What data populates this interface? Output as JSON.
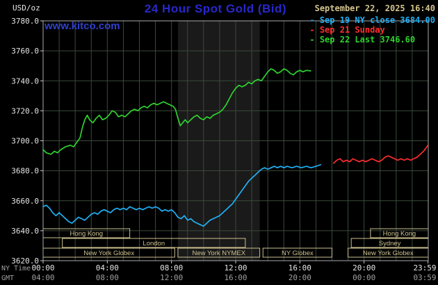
{
  "header": {
    "units": "USD/oz",
    "title": "24 Hour Spot Gold (Bid)",
    "datetime": "September 22, 2025 16:40",
    "watermark": "www.kitco.com"
  },
  "legend": {
    "items": [
      {
        "label": "Sep 19 NY close 3684.00",
        "color": "#22b0f5"
      },
      {
        "label": "Sep 21 Sunday",
        "color": "#ff2e2e"
      },
      {
        "label": "Sep 22 Last 3746.60",
        "color": "#2fd22f"
      }
    ]
  },
  "colors": {
    "background": "#000000",
    "title": "#2828cc",
    "link": "#3040cc",
    "datetime": "#d2c48e",
    "session": "#cdc08f",
    "grid": "#3a4a3a",
    "axis": "#aaaaaa",
    "tick": "#cccccc",
    "tick_label": "#e6e6e6",
    "gmt_label": "#9f9f9f",
    "band": "#1a1a1a"
  },
  "chart_data": {
    "type": "line",
    "title": "24 Hour Spot Gold (Bid)",
    "ylabel": "USD/oz",
    "xlabel": "NY Time / GMT",
    "grid": true,
    "legend_position": "top-right",
    "ylim": [
      3620,
      3780
    ],
    "xlim_hours": [
      0,
      24
    ],
    "nymex_band_hours": [
      8.4,
      13.5
    ],
    "axis_row_labels": {
      "ny": "NY Time",
      "gmt": "GMT"
    },
    "y_ticks": [
      {
        "value": 3780,
        "label": "3780.0"
      },
      {
        "value": 3760,
        "label": "3760.0"
      },
      {
        "value": 3740,
        "label": "3740.0"
      },
      {
        "value": 3720,
        "label": "3720.0"
      },
      {
        "value": 3700,
        "label": "3700.0"
      },
      {
        "value": 3680,
        "label": "3680.0"
      },
      {
        "value": 3660,
        "label": "3660.0"
      },
      {
        "value": 3640,
        "label": "3640.0"
      },
      {
        "value": 3620,
        "label": "3620.0"
      }
    ],
    "x_ticks": [
      {
        "hour": 0,
        "ny": "00:00",
        "gmt": "04:00"
      },
      {
        "hour": 4,
        "ny": "04:00",
        "gmt": "08:00"
      },
      {
        "hour": 8,
        "ny": "08:00",
        "gmt": "12:00"
      },
      {
        "hour": 12,
        "ny": "12:00",
        "gmt": "16:00"
      },
      {
        "hour": 16,
        "ny": "16:00",
        "gmt": "20:00"
      },
      {
        "hour": 20,
        "ny": "20:00",
        "gmt": "00:00"
      },
      {
        "hour": 23.983,
        "ny": "23:59",
        "gmt": "03:59"
      }
    ],
    "sessions": [
      {
        "row": 1,
        "start": 0,
        "end": 5.4,
        "label": "Hong Kong"
      },
      {
        "row": 1,
        "start": 20.4,
        "end": 24,
        "label": "Hong Kong"
      },
      {
        "row": 2,
        "start": 1.2,
        "end": 12.6,
        "label": "London"
      },
      {
        "row": 2,
        "start": 19.2,
        "end": 24,
        "label": "Sydney"
      },
      {
        "row": 3,
        "start": 0,
        "end": 8.2,
        "label": "New York Globex"
      },
      {
        "row": 3,
        "start": 8.4,
        "end": 13.5,
        "label": "New York NYMEX"
      },
      {
        "row": 3,
        "start": 13.7,
        "end": 18.0,
        "label": "NY Globex"
      },
      {
        "row": 3,
        "start": 19.0,
        "end": 24,
        "label": "New York Globex"
      }
    ],
    "series": [
      {
        "name": "sep-22-last",
        "label": "Sep 22 Last 3746.60",
        "color": "#2fd22f",
        "last_value": 3746.6,
        "points": [
          [
            0.0,
            3694
          ],
          [
            0.2,
            3692
          ],
          [
            0.5,
            3691
          ],
          [
            0.7,
            3693
          ],
          [
            0.9,
            3692
          ],
          [
            1.1,
            3694
          ],
          [
            1.4,
            3696
          ],
          [
            1.7,
            3697
          ],
          [
            1.9,
            3696
          ],
          [
            2.1,
            3699
          ],
          [
            2.3,
            3702
          ],
          [
            2.45,
            3709
          ],
          [
            2.6,
            3714
          ],
          [
            2.75,
            3717
          ],
          [
            2.9,
            3714
          ],
          [
            3.1,
            3712
          ],
          [
            3.3,
            3715
          ],
          [
            3.5,
            3717
          ],
          [
            3.7,
            3714
          ],
          [
            3.9,
            3715
          ],
          [
            4.1,
            3717
          ],
          [
            4.3,
            3720
          ],
          [
            4.5,
            3719
          ],
          [
            4.7,
            3716
          ],
          [
            4.9,
            3717
          ],
          [
            5.1,
            3716
          ],
          [
            5.3,
            3718
          ],
          [
            5.5,
            3720
          ],
          [
            5.7,
            3721
          ],
          [
            5.9,
            3720
          ],
          [
            6.1,
            3722
          ],
          [
            6.3,
            3723
          ],
          [
            6.5,
            3722
          ],
          [
            6.7,
            3724
          ],
          [
            6.9,
            3725
          ],
          [
            7.1,
            3724
          ],
          [
            7.3,
            3725
          ],
          [
            7.5,
            3726
          ],
          [
            7.7,
            3725
          ],
          [
            7.9,
            3724
          ],
          [
            8.1,
            3723
          ],
          [
            8.25,
            3721
          ],
          [
            8.4,
            3715
          ],
          [
            8.55,
            3710
          ],
          [
            8.7,
            3712
          ],
          [
            8.85,
            3714
          ],
          [
            9.0,
            3712
          ],
          [
            9.2,
            3714
          ],
          [
            9.4,
            3716
          ],
          [
            9.6,
            3717
          ],
          [
            9.8,
            3715
          ],
          [
            10.0,
            3714
          ],
          [
            10.2,
            3716
          ],
          [
            10.4,
            3715
          ],
          [
            10.6,
            3717
          ],
          [
            10.8,
            3718
          ],
          [
            11.0,
            3719
          ],
          [
            11.2,
            3721
          ],
          [
            11.4,
            3724
          ],
          [
            11.6,
            3728
          ],
          [
            11.8,
            3732
          ],
          [
            12.0,
            3735
          ],
          [
            12.2,
            3737
          ],
          [
            12.4,
            3736
          ],
          [
            12.6,
            3737
          ],
          [
            12.8,
            3739
          ],
          [
            13.0,
            3738
          ],
          [
            13.2,
            3740
          ],
          [
            13.4,
            3741
          ],
          [
            13.6,
            3740
          ],
          [
            13.8,
            3743
          ],
          [
            14.0,
            3746
          ],
          [
            14.2,
            3748
          ],
          [
            14.4,
            3747
          ],
          [
            14.6,
            3745
          ],
          [
            14.8,
            3746
          ],
          [
            15.0,
            3748
          ],
          [
            15.2,
            3747
          ],
          [
            15.4,
            3745
          ],
          [
            15.6,
            3744
          ],
          [
            15.8,
            3746
          ],
          [
            16.0,
            3747
          ],
          [
            16.2,
            3746
          ],
          [
            16.4,
            3747
          ],
          [
            16.67,
            3746.6
          ]
        ]
      },
      {
        "name": "sep-19-ny-close",
        "label": "Sep 19 NY close 3684.00",
        "color": "#22b0f5",
        "last_value": 3684.0,
        "points": [
          [
            0.0,
            3656
          ],
          [
            0.2,
            3657
          ],
          [
            0.4,
            3655
          ],
          [
            0.6,
            3652
          ],
          [
            0.8,
            3650
          ],
          [
            1.0,
            3652
          ],
          [
            1.2,
            3650
          ],
          [
            1.4,
            3648
          ],
          [
            1.6,
            3646
          ],
          [
            1.8,
            3645
          ],
          [
            2.0,
            3647
          ],
          [
            2.2,
            3649
          ],
          [
            2.4,
            3648
          ],
          [
            2.6,
            3647
          ],
          [
            2.8,
            3649
          ],
          [
            3.0,
            3651
          ],
          [
            3.2,
            3652
          ],
          [
            3.4,
            3651
          ],
          [
            3.6,
            3653
          ],
          [
            3.8,
            3654
          ],
          [
            4.0,
            3653
          ],
          [
            4.2,
            3652
          ],
          [
            4.4,
            3654
          ],
          [
            4.6,
            3655
          ],
          [
            4.8,
            3654
          ],
          [
            5.0,
            3655
          ],
          [
            5.2,
            3654
          ],
          [
            5.4,
            3656
          ],
          [
            5.6,
            3655
          ],
          [
            5.8,
            3654
          ],
          [
            6.0,
            3655
          ],
          [
            6.2,
            3654
          ],
          [
            6.4,
            3655
          ],
          [
            6.6,
            3656
          ],
          [
            6.8,
            3655
          ],
          [
            7.0,
            3656
          ],
          [
            7.2,
            3655
          ],
          [
            7.4,
            3653
          ],
          [
            7.6,
            3654
          ],
          [
            7.8,
            3653
          ],
          [
            8.0,
            3654
          ],
          [
            8.2,
            3652
          ],
          [
            8.4,
            3649
          ],
          [
            8.6,
            3648
          ],
          [
            8.8,
            3650
          ],
          [
            9.0,
            3647
          ],
          [
            9.2,
            3648
          ],
          [
            9.4,
            3646
          ],
          [
            9.6,
            3645
          ],
          [
            9.8,
            3644
          ],
          [
            10.0,
            3643
          ],
          [
            10.2,
            3645
          ],
          [
            10.4,
            3647
          ],
          [
            10.6,
            3648
          ],
          [
            10.8,
            3649
          ],
          [
            11.0,
            3650
          ],
          [
            11.2,
            3652
          ],
          [
            11.4,
            3654
          ],
          [
            11.6,
            3656
          ],
          [
            11.8,
            3658
          ],
          [
            12.0,
            3661
          ],
          [
            12.2,
            3664
          ],
          [
            12.4,
            3667
          ],
          [
            12.6,
            3670
          ],
          [
            12.8,
            3673
          ],
          [
            13.0,
            3675
          ],
          [
            13.2,
            3677
          ],
          [
            13.4,
            3679
          ],
          [
            13.6,
            3681
          ],
          [
            13.8,
            3682
          ],
          [
            14.0,
            3681
          ],
          [
            14.2,
            3682
          ],
          [
            14.4,
            3683
          ],
          [
            14.6,
            3682
          ],
          [
            14.8,
            3683
          ],
          [
            15.0,
            3682
          ],
          [
            15.2,
            3683
          ],
          [
            15.5,
            3682
          ],
          [
            15.8,
            3683
          ],
          [
            16.1,
            3682
          ],
          [
            16.4,
            3683
          ],
          [
            16.7,
            3682
          ],
          [
            17.0,
            3683
          ],
          [
            17.3,
            3684
          ]
        ]
      },
      {
        "name": "sep-21-sunday",
        "label": "Sep 21 Sunday",
        "color": "#ff2e2e",
        "points": [
          [
            18.1,
            3685
          ],
          [
            18.3,
            3687
          ],
          [
            18.5,
            3688
          ],
          [
            18.7,
            3686
          ],
          [
            18.9,
            3687
          ],
          [
            19.1,
            3686
          ],
          [
            19.3,
            3688
          ],
          [
            19.5,
            3687
          ],
          [
            19.7,
            3686
          ],
          [
            19.9,
            3687
          ],
          [
            20.1,
            3686
          ],
          [
            20.3,
            3687
          ],
          [
            20.5,
            3688
          ],
          [
            20.7,
            3687
          ],
          [
            20.9,
            3686
          ],
          [
            21.1,
            3687
          ],
          [
            21.3,
            3689
          ],
          [
            21.5,
            3690
          ],
          [
            21.7,
            3689
          ],
          [
            21.9,
            3688
          ],
          [
            22.1,
            3687
          ],
          [
            22.3,
            3688
          ],
          [
            22.5,
            3687
          ],
          [
            22.7,
            3688
          ],
          [
            22.9,
            3687
          ],
          [
            23.1,
            3688
          ],
          [
            23.3,
            3689
          ],
          [
            23.5,
            3691
          ],
          [
            23.7,
            3693
          ],
          [
            23.85,
            3695
          ],
          [
            23.98,
            3697
          ]
        ]
      }
    ]
  }
}
